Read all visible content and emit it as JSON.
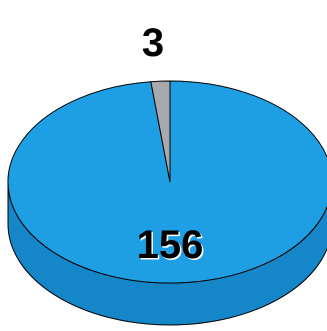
{
  "chart_data": {
    "type": "pie",
    "style": "3d",
    "title": "",
    "slices": [
      {
        "value": 156,
        "color": "#1E9FE3",
        "side_color": "#1586C8"
      },
      {
        "value": 3,
        "color": "#A7A9AC",
        "side_color": "#8A8C8F"
      }
    ],
    "data_labels": [
      "156",
      "3"
    ],
    "legend": "none"
  }
}
